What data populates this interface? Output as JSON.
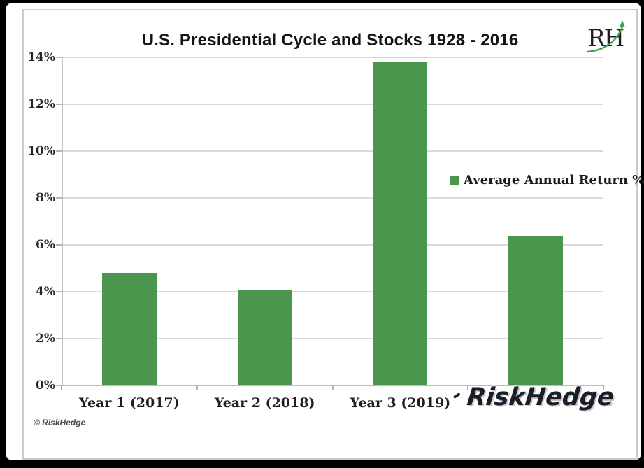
{
  "page": {
    "copyright": "© RiskHedge",
    "watermark": "RiskHedge",
    "logo_text": "RH"
  },
  "colors": {
    "bar_green": "#4b964d",
    "logo_arrow_green": "#41a14f",
    "gridline_gray": "#d9d9d9",
    "axis_gray": "#bdbdbd",
    "title_black": "#141414",
    "footer_gray": "#474747"
  },
  "chart_data": {
    "type": "bar",
    "title": "U.S. Presidential Cycle and Stocks 1928 - 2016",
    "categories": [
      "Year 1 (2017)",
      "Year 2 (2018)",
      "Year 3 (2019)",
      ""
    ],
    "series": [
      {
        "name": "Average Annual Return %",
        "values": [
          4.8,
          4.1,
          13.8,
          6.4
        ]
      }
    ],
    "xlabel": "",
    "ylabel": "",
    "ylim": [
      0,
      14
    ],
    "yticks": [
      {
        "value": 0,
        "label": "0%"
      },
      {
        "value": 2,
        "label": "2%"
      },
      {
        "value": 4,
        "label": "4%"
      },
      {
        "value": 6,
        "label": "6%"
      },
      {
        "value": 8,
        "label": "8%"
      },
      {
        "value": 10,
        "label": "10%"
      },
      {
        "value": 12,
        "label": "12%"
      },
      {
        "value": 14,
        "label": "14%"
      }
    ],
    "grid": true,
    "legend_position": "middle-right"
  }
}
